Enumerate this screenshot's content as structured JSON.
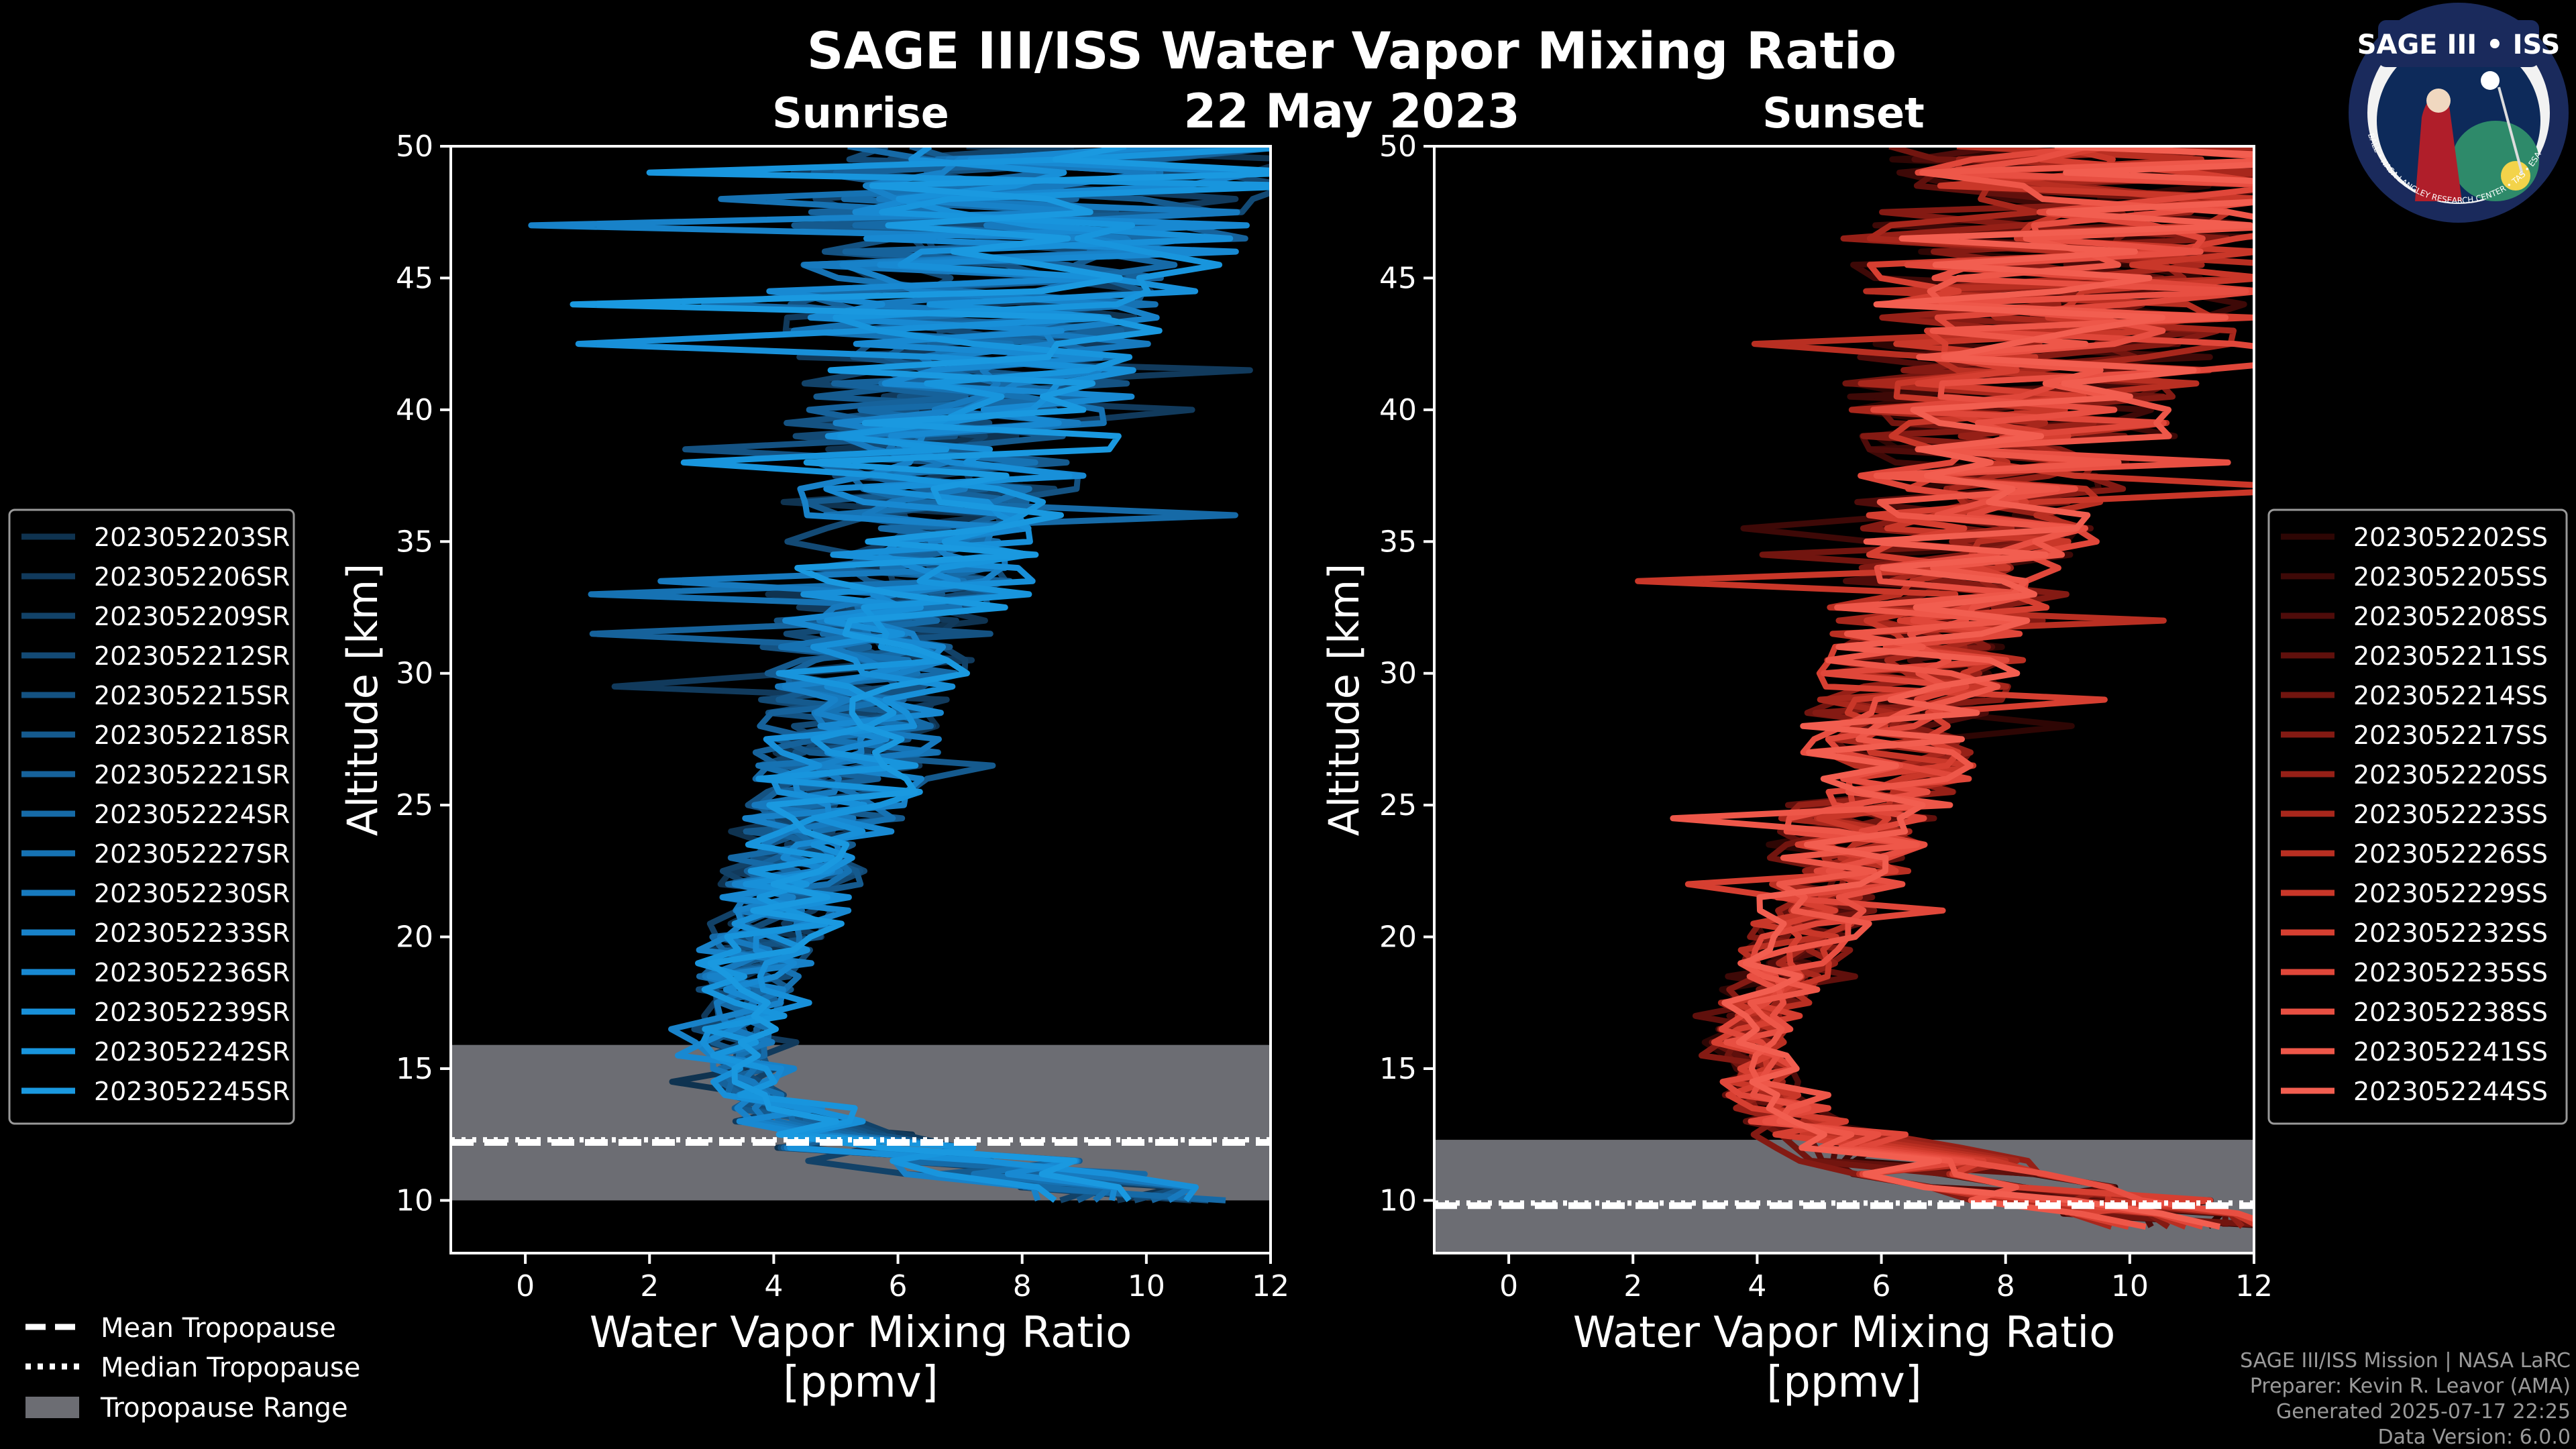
{
  "title": "SAGE III/ISS Water Vapor Mixing Ratio",
  "date": "22 May 2023",
  "logo": {
    "text": "SAGE III • ISS",
    "ring_text": "BALL • NASA LANGLEY RESEARCH CENTER • TAS • ESA"
  },
  "chart_data": [
    {
      "type": "line",
      "panel": "sunrise",
      "title": "Sunrise",
      "xlabel": "Water Vapor Mixing Ratio\n[ppmv]",
      "ylabel": "Altitude [km]",
      "xlim": [
        -1.2,
        12
      ],
      "ylim": [
        8,
        50
      ],
      "xticks": [
        0,
        2,
        4,
        6,
        8,
        10,
        12
      ],
      "yticks": [
        10,
        15,
        20,
        25,
        30,
        35,
        40,
        45,
        50
      ],
      "tropopause": {
        "mean": 12.2,
        "median": 12.3,
        "min": 10.0,
        "max": 15.9
      },
      "profile_shape": {
        "alt": [
          10,
          11,
          12,
          13,
          14,
          16,
          18,
          20,
          23,
          26,
          30,
          33,
          36,
          40,
          44,
          47,
          50
        ],
        "mean": [
          10,
          8,
          6,
          4.5,
          3.7,
          3.4,
          3.6,
          4.0,
          4.6,
          5.2,
          5.7,
          6.2,
          6.7,
          7.2,
          7.8,
          8.5,
          9.5
        ],
        "spread": [
          1.5,
          2.0,
          2.0,
          1.0,
          0.5,
          0.6,
          0.7,
          0.9,
          1.1,
          1.3,
          1.5,
          1.8,
          2.0,
          2.5,
          3.0,
          3.5,
          4.0
        ]
      },
      "series": [
        {
          "name": "2023052203SR",
          "color": "#0f3350"
        },
        {
          "name": "2023052206SR",
          "color": "#113a5c"
        },
        {
          "name": "2023052209SR",
          "color": "#124268"
        },
        {
          "name": "2023052212SR",
          "color": "#134a75"
        },
        {
          "name": "2023052215SR",
          "color": "#145282"
        },
        {
          "name": "2023052218SR",
          "color": "#155a8e"
        },
        {
          "name": "2023052221SR",
          "color": "#16629b"
        },
        {
          "name": "2023052224SR",
          "color": "#166aa7"
        },
        {
          "name": "2023052227SR",
          "color": "#1672b3"
        },
        {
          "name": "2023052230SR",
          "color": "#177abf"
        },
        {
          "name": "2023052233SR",
          "color": "#1882c9"
        },
        {
          "name": "2023052236SR",
          "color": "#1889d2"
        },
        {
          "name": "2023052239SR",
          "color": "#1890d9"
        },
        {
          "name": "2023052242SR",
          "color": "#1895dd"
        },
        {
          "name": "2023052245SR",
          "color": "#1a99e0"
        }
      ]
    },
    {
      "type": "line",
      "panel": "sunset",
      "title": "Sunset",
      "xlabel": "Water Vapor Mixing Ratio\n[ppmv]",
      "ylabel": "Altitude [km]",
      "xlim": [
        -1.2,
        12
      ],
      "ylim": [
        8,
        50
      ],
      "xticks": [
        0,
        2,
        4,
        6,
        8,
        10,
        12
      ],
      "yticks": [
        10,
        15,
        20,
        25,
        30,
        35,
        40,
        45,
        50
      ],
      "tropopause": {
        "mean": 9.8,
        "median": 9.9,
        "min": 8.0,
        "max": 12.3
      },
      "profile_shape": {
        "alt": [
          9,
          10,
          11,
          12,
          13,
          14,
          16,
          18,
          20,
          23,
          26,
          30,
          33,
          36,
          40,
          44,
          47,
          50
        ],
        "mean": [
          11,
          9,
          7,
          5.5,
          4.5,
          4.0,
          3.8,
          4.1,
          4.6,
          5.2,
          5.8,
          6.3,
          6.8,
          7.3,
          7.8,
          8.4,
          9.0,
          9.8
        ],
        "spread": [
          1.5,
          2.0,
          2.0,
          1.5,
          0.8,
          0.6,
          0.6,
          0.7,
          0.9,
          1.1,
          1.3,
          1.5,
          1.8,
          2.0,
          2.5,
          3.0,
          3.5,
          4.0
        ]
      },
      "series": [
        {
          "name": "2023052202SS",
          "color": "#2e0604"
        },
        {
          "name": "2023052205SS",
          "color": "#3e0907"
        },
        {
          "name": "2023052208SS",
          "color": "#4f0c0a"
        },
        {
          "name": "2023052211SS",
          "color": "#60100c"
        },
        {
          "name": "2023052214SS",
          "color": "#72150f"
        },
        {
          "name": "2023052217SS",
          "color": "#841a13"
        },
        {
          "name": "2023052220SS",
          "color": "#962017"
        },
        {
          "name": "2023052223SS",
          "color": "#a8271c"
        },
        {
          "name": "2023052226SS",
          "color": "#b92f22"
        },
        {
          "name": "2023052229SS",
          "color": "#c93729"
        },
        {
          "name": "2023052232SS",
          "color": "#d63f31"
        },
        {
          "name": "2023052235SS",
          "color": "#e0473a"
        },
        {
          "name": "2023052238SS",
          "color": "#e84f42"
        },
        {
          "name": "2023052241SS",
          "color": "#ee5749"
        },
        {
          "name": "2023052244SS",
          "color": "#f25e50"
        }
      ]
    }
  ],
  "legend_tropopause": [
    {
      "label": "Mean Tropopause",
      "style": "dashed"
    },
    {
      "label": "Median Tropopause",
      "style": "dotted"
    },
    {
      "label": "Tropopause Range",
      "style": "patch"
    }
  ],
  "footer": [
    "SAGE III/ISS Mission | NASA LaRC",
    "Preparer: Kevin R. Leavor (AMA)",
    "Generated 2025-07-17 22:25",
    "Data Version: 6.0.0"
  ],
  "colors": {
    "background": "#000000",
    "axis": "#ffffff",
    "range_fill": "#6c6d73"
  }
}
